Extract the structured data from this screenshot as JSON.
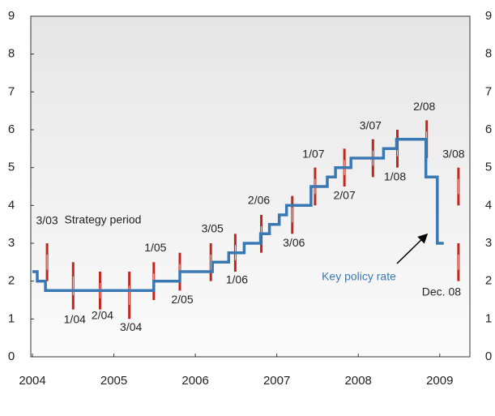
{
  "chart_data": {
    "type": "step",
    "annotations": [
      "Strategy period"
    ],
    "xlim": [
      2004,
      2009.4
    ],
    "xticks": [
      2004,
      2005,
      2006,
      2007,
      2008,
      2009
    ],
    "ylim": [
      0,
      9
    ],
    "yticks": [
      0,
      1,
      2,
      3,
      4,
      5,
      6,
      7,
      8,
      9
    ],
    "series": [
      {
        "name": "Key policy rate",
        "color": "#3a78b4",
        "x": [
          2004,
          2004.06,
          2004.16,
          2005.49,
          2005.81,
          2006.21,
          2006.41,
          2006.6,
          2006.8,
          2006.91,
          2007.03,
          2007.12,
          2007.42,
          2007.62,
          2007.72,
          2007.91,
          2008.31,
          2008.47,
          2008.83,
          2008.97,
          2009.05
        ],
        "values": [
          2.25,
          2.0,
          1.75,
          2.0,
          2.25,
          2.5,
          2.75,
          3.0,
          3.25,
          3.5,
          3.75,
          4.0,
          4.5,
          4.75,
          5.0,
          5.25,
          5.5,
          5.75,
          4.75,
          3.0,
          3.0
        ]
      }
    ],
    "ranges": {
      "color": "#c0281e",
      "labels": [
        "3/03",
        "1/04",
        "2/04",
        "3/04",
        "1/05",
        "2/05",
        "3/05",
        "1/06",
        "2/06",
        "3/06",
        "1/07",
        "2/07",
        "3/07",
        "1/08",
        "2/08",
        "3/08",
        "Dec. 08"
      ],
      "x": [
        2004.18,
        2004.5,
        2004.83,
        2005.19,
        2005.49,
        2005.81,
        2006.19,
        2006.49,
        2006.81,
        2007.19,
        2007.47,
        2007.83,
        2008.18,
        2008.48,
        2008.84,
        2009.23,
        2009.23
      ],
      "low": [
        2.0,
        1.25,
        1.25,
        1.0,
        1.5,
        1.75,
        2.0,
        2.25,
        2.75,
        3.25,
        4.0,
        4.5,
        4.75,
        5.0,
        5.25,
        4.0,
        2.0
      ],
      "high": [
        3.0,
        2.5,
        2.25,
        2.25,
        2.5,
        2.75,
        3.0,
        3.25,
        3.75,
        4.25,
        5.0,
        5.5,
        5.75,
        6.0,
        6.25,
        5.0,
        3.0
      ]
    }
  }
}
